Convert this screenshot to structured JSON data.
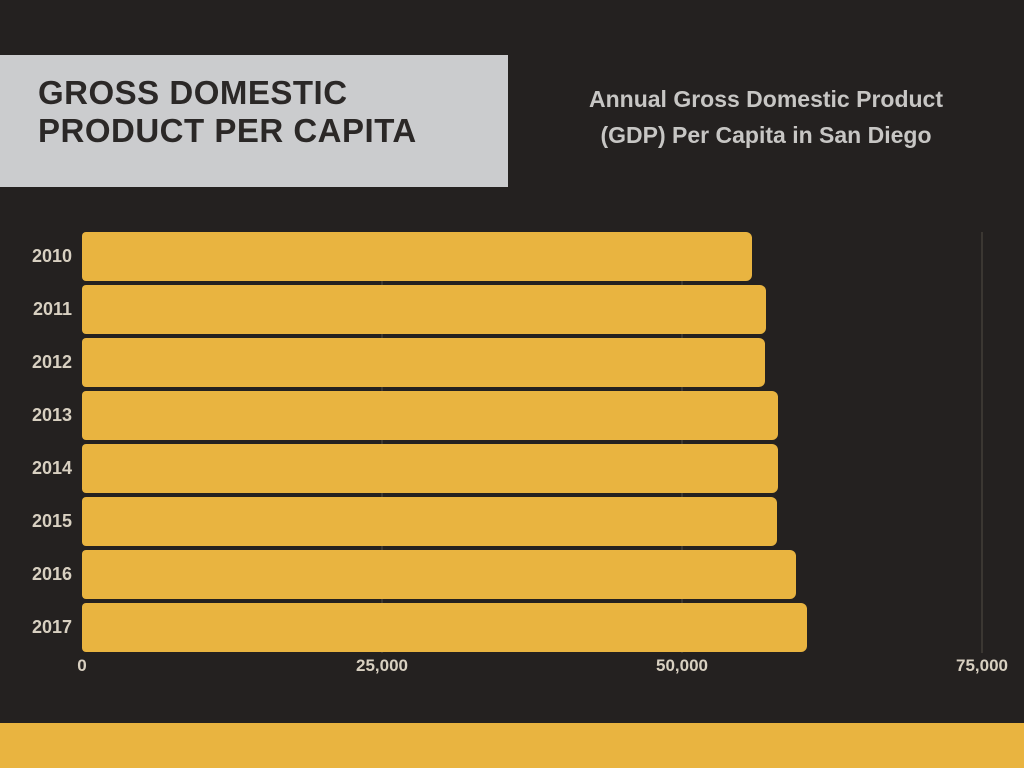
{
  "page": {
    "background_color": "#242120",
    "accent_color": "#e9b440"
  },
  "header": {
    "title_line1": "GROSS DOMESTIC",
    "title_line2": "PRODUCT PER CAPITA",
    "title_block_bg": "#cbccce",
    "title_text_color": "#2b2827",
    "subtitle_line1": "Annual Gross Domestic Product",
    "subtitle_line2": "(GDP) Per Capita in San Diego",
    "subtitle_text_color": "#c7c6c4"
  },
  "chart_data": {
    "type": "bar",
    "orientation": "horizontal",
    "title": "Annual Gross Domestic Product (GDP) Per Capita in San Diego",
    "categories": [
      "2010",
      "2011",
      "2012",
      "2013",
      "2014",
      "2015",
      "2016",
      "2017"
    ],
    "values": [
      55800,
      57000,
      56900,
      58000,
      58000,
      57900,
      59500,
      60400
    ],
    "xlabel": "",
    "ylabel": "",
    "xlim": [
      0,
      75000
    ],
    "xticks": [
      0,
      25000,
      50000,
      75000
    ],
    "xtick_labels": [
      "0",
      "25,000",
      "50,000",
      "75,000"
    ],
    "bar_color": "#e9b440",
    "label_color": "#d8d0c1",
    "grid": true,
    "gridline_color": "#3b3732",
    "legend": false
  },
  "footer": {
    "strip_color": "#e9b440"
  }
}
